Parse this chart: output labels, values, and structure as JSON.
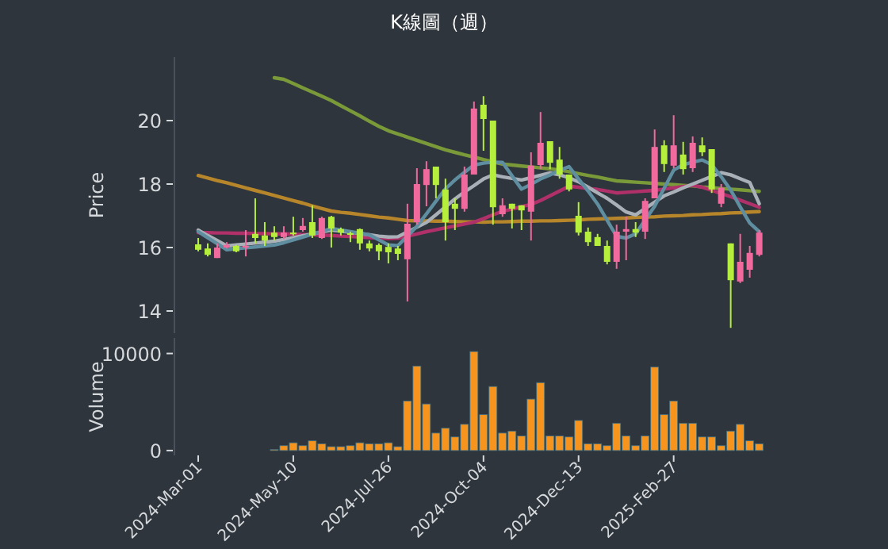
{
  "chart_data": [
    {
      "type": "candlestick",
      "title": "K線圖（週）",
      "ylabel": "Price",
      "ylim": [
        13.3,
        22.0
      ],
      "yticks": [
        14,
        16,
        18,
        20
      ],
      "tick_labels": "y",
      "categories": [
        null,
        null,
        null,
        null,
        null,
        null,
        null,
        null,
        null,
        null,
        null,
        null,
        null,
        null,
        null,
        null,
        null,
        null,
        null,
        null,
        null,
        null,
        null,
        null,
        null,
        null,
        null,
        null,
        null,
        null,
        null,
        null,
        null,
        null,
        null,
        null,
        null,
        null,
        null,
        null,
        null,
        null,
        null,
        null,
        null,
        null,
        null,
        null,
        null,
        null,
        null,
        null,
        null,
        null,
        null,
        null,
        null,
        null,
        null,
        null
      ],
      "ohlc": [
        [
          16.1,
          16.3,
          15.88,
          15.93
        ],
        [
          15.97,
          16.13,
          15.72,
          15.77
        ],
        [
          15.67,
          16.13,
          15.67,
          16.0
        ],
        [
          16.0,
          16.17,
          15.97,
          16.08
        ],
        [
          16.05,
          16.08,
          15.85,
          15.88
        ],
        [
          16.0,
          16.55,
          15.72,
          16.05
        ],
        [
          16.43,
          17.55,
          16.13,
          16.3
        ],
        [
          16.38,
          16.8,
          16.05,
          16.22
        ],
        [
          16.47,
          16.67,
          16.22,
          16.33
        ],
        [
          16.33,
          16.67,
          16.27,
          16.47
        ],
        [
          16.47,
          16.97,
          16.38,
          16.43
        ],
        [
          16.55,
          16.93,
          16.5,
          16.68
        ],
        [
          16.8,
          17.33,
          16.3,
          16.38
        ],
        [
          16.3,
          16.97,
          16.27,
          16.93
        ],
        [
          16.97,
          17.0,
          16.0,
          16.6
        ],
        [
          16.58,
          16.63,
          16.38,
          16.47
        ],
        [
          16.45,
          16.5,
          16.17,
          16.42
        ],
        [
          16.58,
          16.6,
          15.93,
          16.13
        ],
        [
          16.13,
          16.22,
          15.88,
          15.97
        ],
        [
          16.08,
          16.13,
          15.6,
          15.88
        ],
        [
          16.02,
          16.13,
          15.5,
          15.85
        ],
        [
          15.97,
          16.05,
          15.6,
          15.8
        ],
        [
          15.63,
          17.38,
          14.3,
          16.75
        ],
        [
          16.8,
          18.5,
          16.72,
          18.0
        ],
        [
          17.97,
          18.72,
          17.3,
          18.47
        ],
        [
          18.55,
          18.55,
          17.55,
          17.97
        ],
        [
          17.83,
          18.17,
          16.22,
          16.8
        ],
        [
          17.38,
          17.55,
          16.55,
          17.22
        ],
        [
          17.22,
          18.55,
          17.13,
          18.3
        ],
        [
          18.3,
          20.6,
          18.3,
          20.38
        ],
        [
          20.5,
          20.77,
          19.05,
          20.05
        ],
        [
          20.0,
          20.0,
          16.72,
          17.27
        ],
        [
          17.05,
          17.55,
          16.97,
          17.33
        ],
        [
          17.38,
          17.38,
          16.6,
          17.22
        ],
        [
          17.33,
          17.33,
          16.55,
          17.17
        ],
        [
          17.13,
          19.0,
          16.22,
          18.58
        ],
        [
          18.6,
          20.27,
          18.47,
          19.3
        ],
        [
          19.35,
          19.35,
          18.47,
          18.67
        ],
        [
          18.77,
          19.17,
          18.17,
          18.3
        ],
        [
          18.3,
          18.3,
          17.77,
          17.83
        ],
        [
          17.0,
          17.43,
          16.38,
          16.47
        ],
        [
          16.5,
          16.63,
          16.05,
          16.17
        ],
        [
          16.33,
          16.43,
          16.05,
          16.05
        ],
        [
          16.05,
          16.22,
          15.47,
          15.55
        ],
        [
          15.55,
          16.72,
          15.33,
          16.5
        ],
        [
          16.5,
          16.97,
          15.6,
          16.58
        ],
        [
          16.58,
          16.8,
          16.33,
          16.47
        ],
        [
          16.5,
          17.55,
          16.27,
          17.47
        ],
        [
          17.55,
          19.72,
          17.55,
          19.17
        ],
        [
          19.22,
          19.38,
          18.38,
          18.63
        ],
        [
          18.58,
          20.17,
          18.5,
          19.22
        ],
        [
          18.93,
          19.33,
          18.3,
          18.47
        ],
        [
          18.5,
          19.5,
          18.38,
          19.3
        ],
        [
          19.22,
          19.47,
          18.88,
          19.0
        ],
        [
          19.1,
          19.1,
          17.72,
          17.83
        ],
        [
          17.38,
          18.0,
          17.27,
          17.88
        ],
        [
          16.13,
          16.13,
          13.47,
          14.97
        ],
        [
          14.93,
          16.43,
          14.88,
          15.55
        ],
        [
          15.3,
          16.05,
          15.05,
          15.83
        ],
        [
          15.77,
          16.55,
          15.72,
          16.47
        ]
      ],
      "colors": [
        "#b5ee3c",
        "#b5ee3c",
        "#f06a9e",
        "#f06a9e",
        "#b5ee3c",
        "#f06a9e",
        "#b5ee3c",
        "#b5ee3c",
        "#b5ee3c",
        "#f06a9e",
        "#b5ee3c",
        "#f06a9e",
        "#b5ee3c",
        "#f06a9e",
        "#b5ee3c",
        "#b5ee3c",
        "#b5ee3c",
        "#b5ee3c",
        "#b5ee3c",
        "#b5ee3c",
        "#b5ee3c",
        "#b5ee3c",
        "#f06a9e",
        "#f06a9e",
        "#f06a9e",
        "#b5ee3c",
        "#b5ee3c",
        "#b5ee3c",
        "#f06a9e",
        "#f06a9e",
        "#b5ee3c",
        "#b5ee3c",
        "#f06a9e",
        "#b5ee3c",
        "#b5ee3c",
        "#f06a9e",
        "#f06a9e",
        "#b5ee3c",
        "#b5ee3c",
        "#b5ee3c",
        "#b5ee3c",
        "#b5ee3c",
        "#b5ee3c",
        "#b5ee3c",
        "#f06a9e",
        "#f06a9e",
        "#b5ee3c",
        "#f06a9e",
        "#f06a9e",
        "#b5ee3c",
        "#f06a9e",
        "#b5ee3c",
        "#f06a9e",
        "#b5ee3c",
        "#b5ee3c",
        "#f06a9e",
        "#b5ee3c",
        "#f06a9e",
        "#f06a9e",
        "#f06a9e"
      ],
      "series": [
        {
          "type": "line",
          "color": "#b8862a",
          "values": [
            18.27,
            18.19,
            18.11,
            18.04,
            17.96,
            17.88,
            17.8,
            17.72,
            17.64,
            17.56,
            17.48,
            17.4,
            17.31,
            17.23,
            17.15,
            17.11,
            17.08,
            17.04,
            17.0,
            16.96,
            16.93,
            16.89,
            16.85,
            16.84,
            16.84,
            16.83,
            16.83,
            16.82,
            16.81,
            16.81,
            16.8,
            16.81,
            16.81,
            16.82,
            16.83,
            16.83,
            16.84,
            16.84,
            16.85,
            16.86,
            16.87,
            16.89,
            16.9,
            16.91,
            16.92,
            16.93,
            16.95,
            16.96,
            16.97,
            16.99,
            17.0,
            17.01,
            17.03,
            17.04,
            17.06,
            17.07,
            17.09,
            17.1,
            17.12,
            17.13
          ]
        },
        {
          "type": "line",
          "color": "#7a9a3a",
          "values": [
            null,
            null,
            null,
            null,
            null,
            null,
            null,
            null,
            21.35,
            21.3,
            21.17,
            21.03,
            20.9,
            20.77,
            20.63,
            20.47,
            20.31,
            20.15,
            19.98,
            19.82,
            19.68,
            19.58,
            19.48,
            19.38,
            19.28,
            19.18,
            19.08,
            19.0,
            18.92,
            18.85,
            18.77,
            18.7,
            18.63,
            18.6,
            18.57,
            18.54,
            18.51,
            18.48,
            18.44,
            18.39,
            18.33,
            18.27,
            18.22,
            18.16,
            18.1,
            18.08,
            18.06,
            18.04,
            18.02,
            18.0,
            17.98,
            17.96,
            17.94,
            17.91,
            17.89,
            17.86,
            17.84,
            17.82,
            17.79,
            17.77
          ]
        },
        {
          "type": "line",
          "color": "#b0306a",
          "values": [
            16.47,
            16.47,
            16.46,
            16.46,
            16.45,
            16.45,
            16.44,
            16.44,
            16.43,
            16.43,
            16.42,
            16.41,
            16.4,
            16.39,
            16.38,
            16.36,
            16.35,
            16.33,
            16.31,
            16.3,
            16.28,
            16.29,
            16.36,
            16.43,
            16.5,
            16.56,
            16.62,
            16.68,
            16.74,
            16.8,
            16.91,
            17.03,
            17.14,
            17.21,
            17.29,
            17.36,
            17.48,
            17.63,
            17.78,
            17.93,
            17.9,
            17.86,
            17.83,
            17.78,
            17.72,
            17.74,
            17.76,
            17.78,
            17.8,
            17.84,
            17.88,
            17.92,
            17.96,
            17.9,
            17.8,
            17.7,
            17.6,
            17.49,
            17.38,
            17.27
          ]
        },
        {
          "type": "line",
          "color": "#a9b0b8",
          "values": [
            16.55,
            16.38,
            16.22,
            16.05,
            16.08,
            16.11,
            16.14,
            16.17,
            16.2,
            16.25,
            16.31,
            16.37,
            16.43,
            16.49,
            16.55,
            16.52,
            16.48,
            16.44,
            16.4,
            16.36,
            16.33,
            16.34,
            16.49,
            16.64,
            16.79,
            17.03,
            17.28,
            17.53,
            17.75,
            17.95,
            18.16,
            18.29,
            18.23,
            18.18,
            18.13,
            18.2,
            18.28,
            18.35,
            18.29,
            18.2,
            18.07,
            17.9,
            17.72,
            17.55,
            17.34,
            17.12,
            17.03,
            17.23,
            17.43,
            17.63,
            17.75,
            17.88,
            18.0,
            18.12,
            18.24,
            18.36,
            18.29,
            18.17,
            18.05,
            17.38
          ]
        },
        {
          "type": "line",
          "color": "#5e8ea0",
          "values": [
            16.5,
            16.31,
            16.12,
            15.93,
            15.96,
            15.99,
            16.02,
            16.05,
            16.08,
            16.15,
            16.24,
            16.33,
            16.42,
            16.51,
            16.6,
            16.55,
            16.5,
            16.45,
            16.4,
            16.24,
            16.08,
            16.06,
            16.36,
            16.67,
            17.06,
            17.46,
            17.85,
            18.13,
            18.37,
            18.6,
            18.66,
            18.69,
            18.68,
            18.26,
            17.84,
            17.99,
            18.16,
            18.29,
            18.43,
            18.55,
            18.16,
            17.78,
            17.37,
            16.86,
            16.35,
            16.3,
            16.43,
            16.87,
            17.3,
            17.87,
            18.44,
            18.61,
            18.69,
            18.76,
            18.61,
            18.23,
            17.81,
            17.28,
            16.77,
            16.5
          ]
        }
      ]
    },
    {
      "type": "bar",
      "ylabel": "Volume",
      "color": "#f7941d",
      "ylim": [
        -500,
        11600
      ],
      "yticks": [
        0,
        10000
      ],
      "categories": [
        "2024-Mar-01",
        null,
        null,
        null,
        null,
        null,
        null,
        null,
        null,
        null,
        "2024-May-10",
        null,
        null,
        null,
        null,
        null,
        null,
        null,
        null,
        null,
        "2024-Jul-26",
        null,
        null,
        null,
        null,
        null,
        null,
        null,
        null,
        null,
        "2024-Oct-04",
        null,
        null,
        null,
        null,
        null,
        null,
        null,
        null,
        null,
        "2024-Dec-13",
        null,
        null,
        null,
        null,
        null,
        null,
        null,
        null,
        null,
        "2025-Feb-27",
        null,
        null,
        null,
        null,
        null,
        null,
        null,
        null,
        null
      ],
      "values": [
        null,
        null,
        null,
        null,
        null,
        null,
        null,
        null,
        100,
        500,
        800,
        500,
        1000,
        700,
        400,
        400,
        500,
        800,
        700,
        700,
        800,
        400,
        5100,
        8700,
        4800,
        1800,
        2300,
        1400,
        2700,
        10200,
        3700,
        6600,
        1800,
        2000,
        1500,
        5300,
        7000,
        1500,
        1500,
        1400,
        3100,
        700,
        700,
        500,
        2800,
        1500,
        500,
        1500,
        8600,
        3700,
        5100,
        2800,
        2800,
        1400,
        1400,
        500,
        2000,
        2700,
        1000,
        700
      ]
    }
  ]
}
